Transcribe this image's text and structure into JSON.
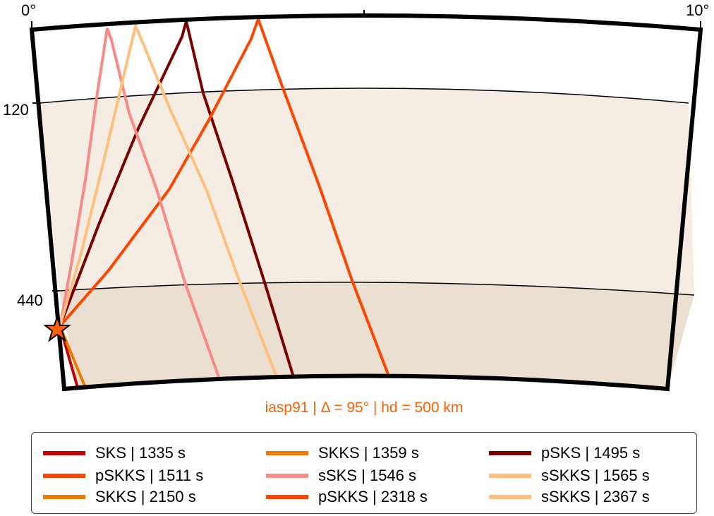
{
  "figure": {
    "model": "iasp91",
    "distance_deg": 95,
    "source_depth_km": 500,
    "subtitle": "iasp91 | Δ = 95° | hd = 500 km",
    "subtitle_color": "#ff6000"
  },
  "axes": {
    "angle_ticks": [
      "0°",
      "10°"
    ],
    "depth_ticks": [
      "120",
      "440"
    ]
  },
  "layers": [
    {
      "name": "upper-mantle",
      "color": "#ffffff"
    },
    {
      "name": "transition",
      "color": "#f5ece3"
    },
    {
      "name": "lower",
      "color": "#eadfd0"
    }
  ],
  "source_star": {
    "color": "#ff6000"
  },
  "legend": [
    {
      "label": "SKS | 1335 s",
      "color": "#c40000"
    },
    {
      "label": "SKKS | 1359 s",
      "color": "#ee7a00"
    },
    {
      "label": "pSKS | 1495 s",
      "color": "#7a0000"
    },
    {
      "label": "pSKKS | 1511 s",
      "color": "#ff4500"
    },
    {
      "label": "sSKS | 1546 s",
      "color": "#f88a88"
    },
    {
      "label": "sSKKS | 1565 s",
      "color": "#ffc07d"
    },
    {
      "label": "SKKS | 2150 s",
      "color": "#ee7a00"
    },
    {
      "label": "pSKKS | 2318 s",
      "color": "#ff4500"
    },
    {
      "label": "sSKKS | 2367 s",
      "color": "#ffc07d"
    }
  ]
}
